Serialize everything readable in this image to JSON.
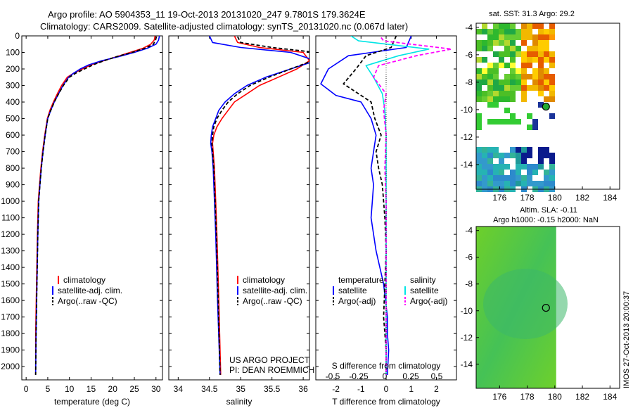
{
  "header": {
    "title_line1": "Argo profile: AO 5904353_11 19-Oct-2013 20131020_247 9.7801S 179.3624E",
    "title_line2": "Climatology: CARS2009. Satellite-adjusted climatology: synTS_20131020.nc (0.067d later)"
  },
  "colors": {
    "climatology": "#ff0000",
    "satellite": "#0000ff",
    "argo": "#000000",
    "sal_satellite": "#00e5e5",
    "sal_argo": "#ff00ff"
  },
  "chart_data": [
    {
      "id": "temperature",
      "type": "line",
      "xlabel": "temperature (deg C)",
      "ylabel": "",
      "xlim": [
        -1,
        31.5
      ],
      "ylim": [
        2080,
        0
      ],
      "xticks": [
        0,
        5,
        10,
        15,
        20,
        25,
        30
      ],
      "yticks": [
        0,
        100,
        200,
        300,
        400,
        500,
        600,
        700,
        800,
        900,
        1000,
        1100,
        1200,
        1300,
        1400,
        1500,
        1600,
        1700,
        1800,
        1900,
        2000
      ],
      "legend": [
        "climatology",
        "satellite-adj. clim.",
        "Argo(..raw -QC)"
      ],
      "series": [
        {
          "name": "climatology",
          "style": "solid",
          "color": "#ff0000",
          "x": [
            29.8,
            29.6,
            28.8,
            27.0,
            24.0,
            21.0,
            18.0,
            15.0,
            13.0,
            11.0,
            9.5,
            8.2,
            7.2,
            6.3,
            5.5,
            4.9,
            4.3,
            3.8,
            3.4,
            3.1,
            2.8,
            2.6,
            2.4,
            2.2,
            2.2
          ],
          "y": [
            0,
            25,
            50,
            75,
            100,
            125,
            150,
            175,
            200,
            225,
            250,
            300,
            350,
            400,
            450,
            500,
            600,
            700,
            800,
            900,
            1000,
            1200,
            1500,
            1800,
            2050
          ]
        },
        {
          "name": "satellite-adj. clim.",
          "style": "solid",
          "color": "#0000ff",
          "x": [
            30.8,
            30.6,
            30.0,
            28.0,
            25.0,
            21.5,
            17.5,
            14.5,
            12.5,
            11.0,
            9.8,
            8.5,
            7.5,
            6.5,
            5.7,
            5.0,
            4.4,
            3.9,
            3.5,
            3.2,
            2.9,
            2.7,
            2.5,
            2.3,
            2.2
          ],
          "y": [
            0,
            25,
            50,
            75,
            100,
            125,
            150,
            175,
            200,
            225,
            250,
            300,
            350,
            400,
            450,
            500,
            600,
            700,
            800,
            900,
            1000,
            1200,
            1500,
            1800,
            2050
          ]
        },
        {
          "name": "Argo(..raw -QC)",
          "style": "dashed",
          "color": "#000000",
          "x": [
            30.1,
            29.9,
            29.4,
            27.5,
            24.5,
            21.0,
            18.0,
            15.5,
            13.5,
            11.5,
            10.0,
            8.6,
            7.5,
            6.5,
            5.7,
            5.0,
            4.4,
            3.9,
            3.5,
            3.2,
            2.9,
            2.7,
            2.5,
            2.3,
            2.2
          ],
          "y": [
            5,
            25,
            50,
            75,
            100,
            125,
            150,
            175,
            200,
            225,
            250,
            300,
            350,
            400,
            450,
            500,
            600,
            700,
            800,
            900,
            1000,
            1200,
            1500,
            1800,
            2050
          ]
        }
      ]
    },
    {
      "id": "salinity",
      "type": "line",
      "xlabel": "salinity",
      "xlim": [
        33.85,
        36.1
      ],
      "ylim": [
        2080,
        0
      ],
      "xticks": [
        34,
        34.5,
        35,
        35.5,
        36
      ],
      "xtick_labels": [
        "34",
        "34.5",
        "35",
        "35.5",
        "36"
      ],
      "legend": [
        "climatology",
        "satellite-adj. clim.",
        "Argo(..raw -QC)"
      ],
      "annotation": [
        "US ARGO PROJECT",
        "PI: DEAN ROEMMICH"
      ],
      "series": [
        {
          "name": "climatology",
          "style": "solid",
          "color": "#ff0000",
          "x": [
            34.9,
            34.95,
            35.3,
            36.0,
            36.1,
            35.9,
            35.6,
            35.3,
            35.1,
            34.9,
            34.8,
            34.7,
            34.62,
            34.57,
            34.55,
            34.56,
            34.58,
            34.6,
            34.62,
            34.65,
            34.68
          ],
          "y": [
            0,
            40,
            70,
            100,
            150,
            200,
            250,
            300,
            350,
            400,
            450,
            500,
            550,
            600,
            650,
            700,
            800,
            1000,
            1200,
            1600,
            2050
          ]
        },
        {
          "name": "satellite-adj. clim.",
          "style": "solid",
          "color": "#0000ff",
          "x": [
            34.5,
            34.55,
            35.0,
            35.8,
            36.2,
            35.8,
            35.4,
            35.1,
            34.9,
            34.75,
            34.65,
            34.6,
            34.55,
            34.53,
            34.52,
            34.54,
            34.56,
            34.58,
            34.6,
            34.63,
            34.67
          ],
          "y": [
            0,
            40,
            70,
            100,
            150,
            200,
            250,
            300,
            350,
            400,
            450,
            500,
            550,
            600,
            650,
            700,
            800,
            1000,
            1200,
            1600,
            2050
          ]
        },
        {
          "name": "Argo(..raw -QC)",
          "style": "dashed",
          "color": "#000000",
          "x": [
            34.95,
            35.0,
            35.5,
            36.2,
            36.15,
            35.8,
            35.45,
            35.15,
            34.95,
            34.8,
            34.7,
            34.62,
            34.57,
            34.55,
            34.54,
            34.55,
            34.57,
            34.59,
            34.61,
            34.64,
            34.67
          ],
          "y": [
            5,
            40,
            70,
            100,
            150,
            200,
            250,
            300,
            350,
            400,
            450,
            500,
            550,
            600,
            650,
            700,
            800,
            1000,
            1200,
            1600,
            2050
          ]
        }
      ]
    },
    {
      "id": "difference",
      "type": "line",
      "xlabel": "T difference from climatology",
      "xlabel_top": "S difference from climatology",
      "xlim": [
        -2.8,
        2.8
      ],
      "ylim": [
        2080,
        0
      ],
      "xticks": [
        -2,
        -1,
        0,
        1,
        2
      ],
      "xticks_top": [
        "-0.5",
        "-0.25",
        "0",
        "0.25",
        "0.5"
      ],
      "legend_headers": [
        "temperature",
        "salinity"
      ],
      "legend": [
        "satellite",
        "Argo(-adj)",
        "satellite",
        "Argo(-adj)"
      ],
      "series": [
        {
          "name": "temperature satellite",
          "style": "solid",
          "color": "#0000ff",
          "x": [
            1.0,
            0.8,
            -1.5,
            -2.3,
            -2.6,
            -2.0,
            -1.0,
            -0.6,
            -0.4,
            -0.5,
            -0.6,
            -0.5,
            -0.55,
            -0.6,
            -0.4,
            -0.1,
            0.05,
            0.05,
            0.1,
            0.05
          ],
          "y": [
            0,
            70,
            120,
            200,
            290,
            360,
            400,
            500,
            600,
            700,
            800,
            900,
            1000,
            1100,
            1300,
            1500,
            1700,
            1800,
            1900,
            2050
          ]
        },
        {
          "name": "temperature Argo(-adj)",
          "style": "dashed",
          "color": "#000000",
          "x": [
            0.4,
            0.2,
            -0.8,
            -1.2,
            -1.7,
            -1.0,
            -0.6,
            -0.45,
            -0.2,
            -0.4,
            -0.3,
            -0.15,
            -0.1,
            -0.05,
            0.0,
            -0.05,
            -0.1,
            -0.05,
            0.0,
            0.0
          ],
          "y": [
            0,
            70,
            120,
            200,
            290,
            360,
            400,
            500,
            600,
            700,
            800,
            900,
            1000,
            1100,
            1300,
            1500,
            1700,
            1800,
            1900,
            2050
          ]
        },
        {
          "name": "salinity satellite",
          "style": "solid",
          "color": "#00e5e5",
          "x": [
            -1.4,
            -1.1,
            1.7,
            0.5,
            -0.8,
            -0.5,
            -0.15,
            -0.05,
            0.0,
            0.0,
            0.0,
            0.0,
            0.0,
            0.0,
            0.0
          ],
          "y": [
            0,
            30,
            80,
            120,
            180,
            250,
            350,
            450,
            600,
            800,
            1000,
            1300,
            1600,
            1800,
            2050
          ]
        },
        {
          "name": "salinity Argo(-adj)",
          "style": "dashed",
          "color": "#ff00ff",
          "x": [
            -0.2,
            -0.1,
            2.6,
            1.2,
            -0.3,
            -0.5,
            0.0,
            -0.1,
            0.0,
            -0.05,
            0.0,
            0.0,
            0.0,
            0.0,
            0.0
          ],
          "y": [
            10,
            30,
            80,
            120,
            180,
            250,
            350,
            450,
            600,
            800,
            1000,
            1300,
            1600,
            1800,
            2050
          ]
        }
      ]
    },
    {
      "id": "sst_map",
      "type": "heatmap",
      "title": "sat. SST: 31.3  Argo: 29.2",
      "xlim": [
        174.3,
        184.7
      ],
      "ylim": [
        -15.8,
        -3.7
      ],
      "xticks": [
        176,
        178,
        180,
        182,
        184
      ],
      "yticks": [
        -4,
        -6,
        -8,
        -10,
        -12,
        -14
      ],
      "argo_position": {
        "lon": 179.36,
        "lat": -9.78
      }
    },
    {
      "id": "sla_map",
      "type": "heatmap",
      "title": "Altim. SLA: -0.11",
      "subtitle": "Argo h1000: -0.15 h2000: NaN",
      "xlim": [
        174.3,
        184.7
      ],
      "ylim": [
        -15.8,
        -3.7
      ],
      "xticks": [
        176,
        178,
        180,
        182,
        184
      ],
      "yticks": [
        -4,
        -6,
        -8,
        -10,
        -12,
        -14
      ],
      "argo_position": {
        "lon": 179.36,
        "lat": -9.78
      }
    }
  ],
  "sidebar_text": "IMOS 27-Oct-2013 20:00:37"
}
